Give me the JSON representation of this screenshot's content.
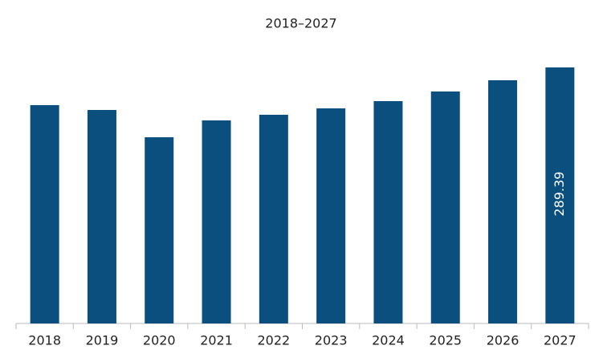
{
  "chart_data": {
    "type": "bar",
    "title": "2018–2027",
    "categories": [
      "2018",
      "2019",
      "2020",
      "2021",
      "2022",
      "2023",
      "2024",
      "2025",
      "2026",
      "2027"
    ],
    "values": [
      246.8,
      241.3,
      210.5,
      229.5,
      235.9,
      243.1,
      251.3,
      262.2,
      274.9,
      289.39
    ],
    "value_labels": [
      null,
      null,
      null,
      null,
      null,
      null,
      null,
      null,
      null,
      "289.39"
    ],
    "color": "#0b4f7f"
  }
}
